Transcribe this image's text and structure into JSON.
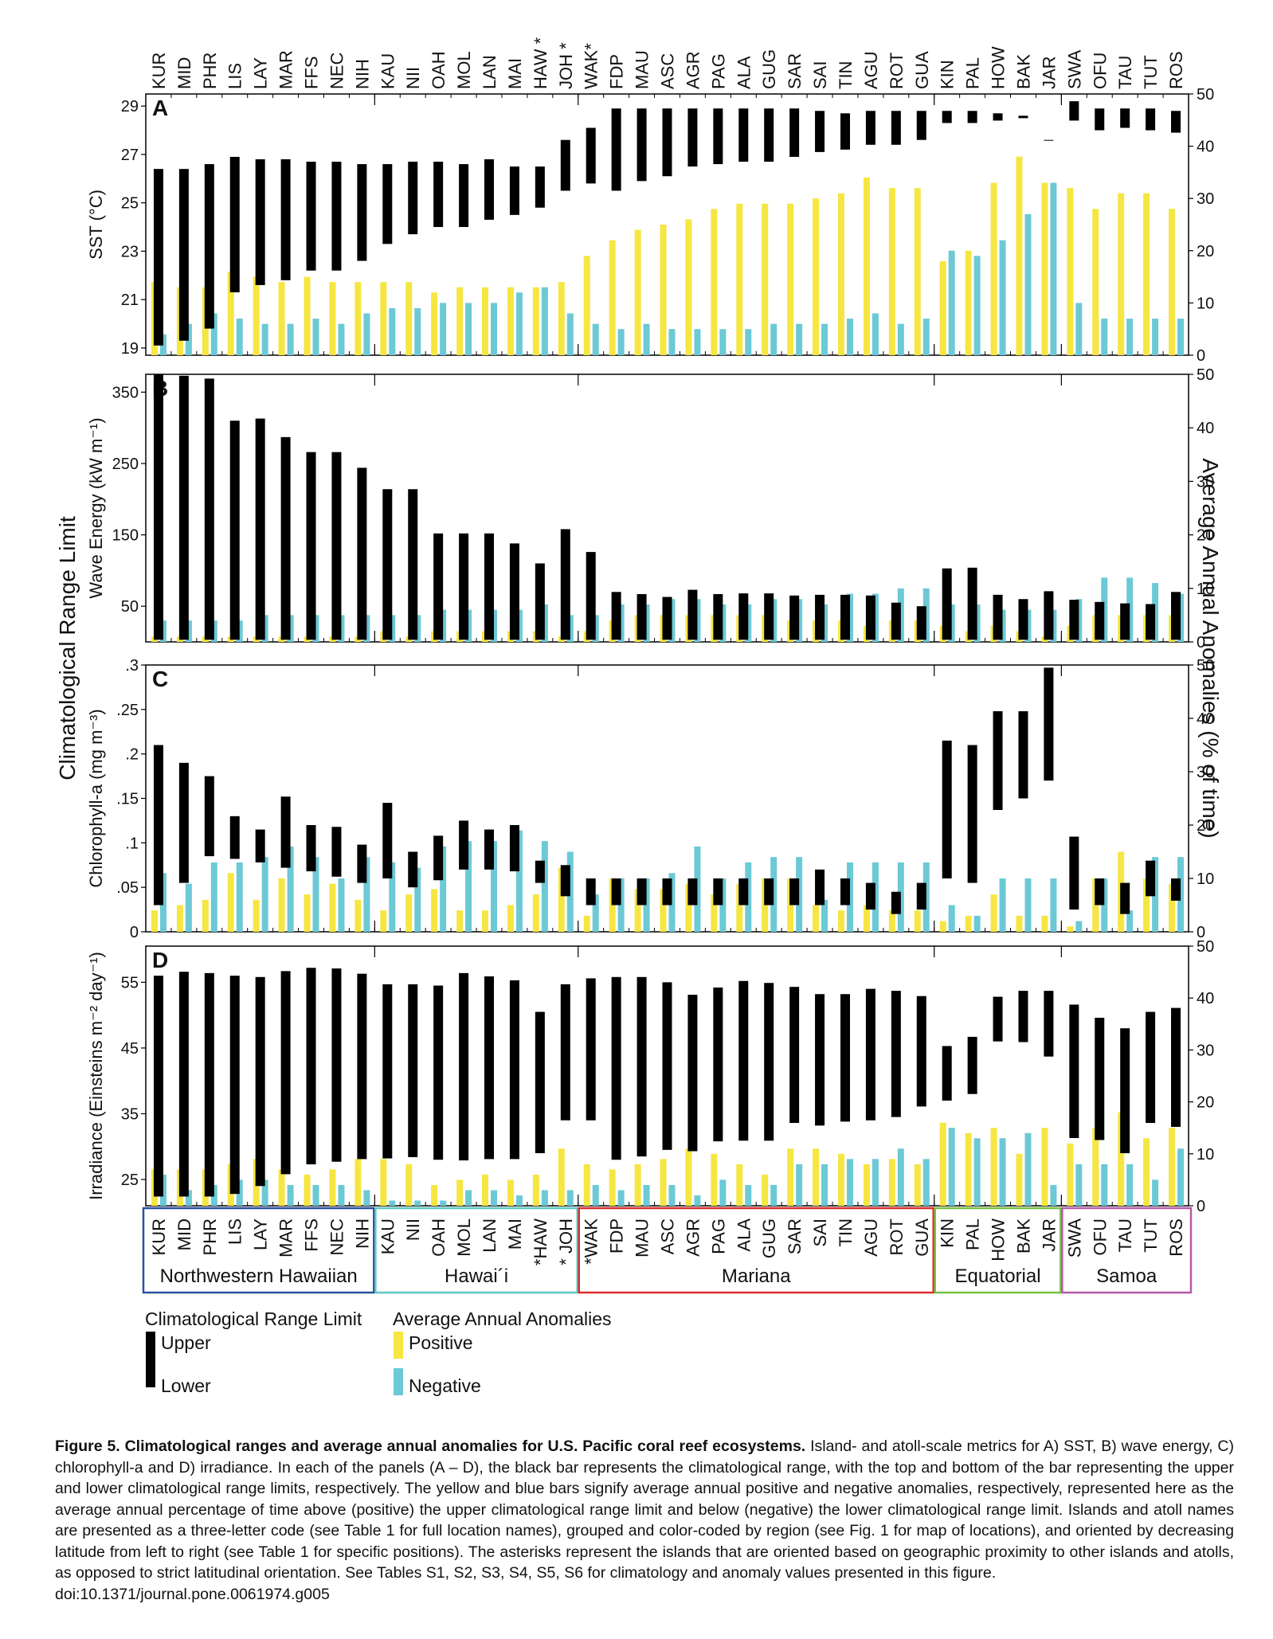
{
  "figure": {
    "caption_title": "Figure 5. Climatological ranges and average annual anomalies for U.S. Pacific coral reef ecosystems.",
    "caption_body": "Island- and atoll-scale metrics for A) SST, B) wave energy, C) chlorophyll-a and D) irradiance. In each of the panels (A – D), the black bar represents the climatological range, with the top and bottom of the bar representing the upper and lower climatological range limits, respectively. The yellow and blue bars signify average annual positive and negative anomalies, respectively, represented here as the average annual percentage of time above (positive) the upper climatological range limit and below (negative) the lower climatological range limit. Islands and atoll names are presented as a three-letter code (see Table 1 for full location names), grouped and color-coded by region (see Fig. 1 for map of locations), and oriented by decreasing latitude from left to right (see Table 1 for specific positions). The asterisks represent the islands that are oriented based on geographic proximity to other islands and atolls, as opposed to strict latitudinal orientation. See Tables S1, S2, S3, S4, S5, S6 for climatology and anomaly values presented in this figure.",
    "doi": "doi:10.1371/journal.pone.0061974.g005",
    "left_axis_title": "Climatological Range Limit",
    "right_axis_title": "Average Annual Anomalies (% of time)",
    "legend": {
      "range_title": "Climatological Range Limit",
      "upper": "Upper",
      "lower": "Lower",
      "anomaly_title": "Average Annual Anomalies",
      "positive": "Positive",
      "negative": "Negative"
    },
    "colors": {
      "range": "#000000",
      "positive": "#f5e642",
      "negative": "#6cc9d6"
    }
  },
  "chart_data": {
    "type": "bar",
    "categories": [
      "KUR",
      "MID",
      "PHR",
      "LIS",
      "LAY",
      "MAR",
      "FFS",
      "NEC",
      "NIH",
      "KAU",
      "NII",
      "OAH",
      "MOL",
      "LAN",
      "MAI",
      "HAW",
      "JOH",
      "WAK",
      "FDP",
      "MAU",
      "ASC",
      "AGR",
      "PAG",
      "ALA",
      "GUG",
      "SAR",
      "SAI",
      "TIN",
      "AGU",
      "ROT",
      "GUA",
      "KIN",
      "PAL",
      "HOW",
      "BAK",
      "JAR",
      "SWA",
      "OFU",
      "TAU",
      "TUT",
      "ROS"
    ],
    "top_labels": [
      "KUR",
      "MID",
      "PHR",
      "LIS",
      "LAY",
      "MAR",
      "FFS",
      "NEC",
      "NIH",
      "KAU",
      "NII",
      "OAH",
      "MOL",
      "LAN",
      "MAI",
      "HAW *",
      "JOH *",
      "WAK*",
      "FDP",
      "MAU",
      "ASC",
      "AGR",
      "PAG",
      "ALA",
      "GUG",
      "SAR",
      "SAI",
      "TIN",
      "AGU",
      "ROT",
      "GUA",
      "KIN",
      "PAL",
      "HOW",
      "BAK",
      "JAR",
      "SWA",
      "OFU",
      "TAU",
      "TUT",
      "ROS"
    ],
    "bottom_labels": [
      "KUR",
      "MID",
      "PHR",
      "LIS",
      "LAY",
      "MAR",
      "FFS",
      "NEC",
      "NIH",
      "KAU",
      "NII",
      "OAH",
      "MOL",
      "LAN",
      "MAI",
      "*HAW",
      "* JOH",
      "*WAK",
      "FDP",
      "MAU",
      "ASC",
      "AGR",
      "PAG",
      "ALA",
      "GUG",
      "SAR",
      "SAI",
      "TIN",
      "AGU",
      "ROT",
      "GUA",
      "KIN",
      "PAL",
      "HOW",
      "BAK",
      "JAR",
      "SWA",
      "OFU",
      "TAU",
      "TUT",
      "ROS"
    ],
    "regions": [
      {
        "name": "Northwestern Hawaiian",
        "start": 0,
        "end": 8,
        "color": "#2a4fa0"
      },
      {
        "name": "Hawai´i",
        "start": 9,
        "end": 16,
        "color": "#5ec8c0"
      },
      {
        "name": "Mariana",
        "start": 17,
        "end": 30,
        "color": "#d92b2b"
      },
      {
        "name": "Equatorial",
        "start": 31,
        "end": 35,
        "color": "#7ac043"
      },
      {
        "name": "Samoa",
        "start": 36,
        "end": 40,
        "color": "#b55ba8"
      }
    ],
    "right_ylim": [
      0,
      50
    ],
    "right_ticks": [
      0,
      10,
      20,
      30,
      40,
      50
    ],
    "panels": [
      {
        "letter": "A",
        "ylabel": "SST (°C)",
        "ylim": [
          18.7,
          29.5
        ],
        "yticks": [
          19,
          21,
          23,
          25,
          27,
          29
        ],
        "range_lower": [
          19.1,
          19.3,
          19.8,
          21.3,
          21.6,
          21.8,
          22.2,
          22.2,
          22.6,
          23.3,
          23.7,
          24.0,
          24.0,
          24.3,
          24.5,
          24.8,
          25.5,
          25.8,
          25.5,
          25.9,
          26.1,
          26.5,
          26.6,
          26.7,
          26.7,
          26.9,
          27.1,
          27.2,
          27.4,
          27.4,
          27.6,
          28.3,
          28.3,
          28.4,
          28.5,
          27.6,
          28.4,
          28.0,
          28.1,
          28.0,
          27.9
        ],
        "range_upper": [
          26.4,
          26.4,
          26.6,
          26.9,
          26.8,
          26.8,
          26.7,
          26.7,
          26.6,
          26.6,
          26.7,
          26.7,
          26.6,
          26.8,
          26.5,
          26.5,
          27.6,
          28.1,
          28.9,
          28.9,
          28.9,
          28.9,
          28.9,
          28.9,
          28.9,
          28.9,
          28.8,
          28.7,
          28.8,
          28.8,
          28.8,
          28.8,
          28.8,
          28.7,
          28.6,
          27.6,
          29.2,
          28.9,
          28.9,
          28.9,
          28.8
        ],
        "positive": [
          14,
          13,
          13,
          16,
          15,
          14,
          15,
          14,
          14,
          14,
          14,
          12,
          13,
          13,
          13,
          13,
          14,
          19,
          22,
          24,
          25,
          26,
          28,
          29,
          29,
          29,
          30,
          31,
          34,
          32,
          32,
          18,
          20,
          33,
          38,
          33,
          32,
          28,
          31,
          31,
          28
        ],
        "negative": [
          4,
          6,
          8,
          7,
          6,
          6,
          7,
          6,
          8,
          9,
          9,
          10,
          10,
          10,
          12,
          13,
          8,
          6,
          5,
          6,
          5,
          5,
          5,
          5,
          6,
          6,
          6,
          7,
          8,
          6,
          7,
          20,
          19,
          22,
          27,
          33,
          10,
          7,
          7,
          7,
          7
        ]
      },
      {
        "letter": "B",
        "ylabel": "Wave Energy (kW m⁻¹)",
        "ylim": [
          0,
          375
        ],
        "yticks": [
          50,
          150,
          250,
          350
        ],
        "range_lower": [
          3,
          3,
          3,
          3,
          3,
          3,
          3,
          3,
          3,
          3,
          3,
          3,
          3,
          3,
          3,
          3,
          3,
          3,
          3,
          3,
          3,
          3,
          3,
          3,
          3,
          3,
          3,
          3,
          3,
          3,
          3,
          3,
          3,
          3,
          3,
          3,
          3,
          3,
          3,
          3,
          3
        ],
        "range_upper": [
          375,
          373,
          369,
          310,
          313,
          287,
          266,
          266,
          244,
          214,
          214,
          152,
          152,
          152,
          138,
          110,
          158,
          126,
          70,
          67,
          63,
          73,
          67,
          68,
          68,
          65,
          66,
          66,
          65,
          55,
          50,
          103,
          104,
          66,
          60,
          71,
          59,
          56,
          54,
          53,
          70
        ],
        "positive": [
          1,
          1,
          1,
          1,
          1,
          1,
          1,
          1,
          1,
          2,
          1,
          2,
          2,
          2,
          2,
          2,
          1,
          2,
          4,
          5,
          5,
          5,
          5,
          5,
          5,
          4,
          4,
          4,
          3,
          4,
          4,
          3,
          2,
          3,
          2,
          1,
          3,
          5,
          5,
          5,
          5
        ],
        "negative": [
          4,
          4,
          4,
          4,
          5,
          5,
          5,
          5,
          5,
          5,
          5,
          6,
          6,
          6,
          6,
          7,
          5,
          5,
          7,
          7,
          8,
          8,
          7,
          7,
          8,
          8,
          7,
          9,
          9,
          10,
          10,
          7,
          7,
          6,
          6,
          6,
          8,
          12,
          12,
          11,
          9
        ]
      },
      {
        "letter": "C",
        "ylabel": "Chlorophyll-a (mg m⁻³)",
        "ylim": [
          0,
          0.3
        ],
        "yticks": [
          0,
          0.05,
          0.1,
          0.15,
          0.2,
          0.25,
          0.3
        ],
        "range_lower": [
          0.03,
          0.055,
          0.085,
          0.082,
          0.078,
          0.072,
          0.068,
          0.062,
          0.055,
          0.06,
          0.05,
          0.058,
          0.07,
          0.07,
          0.068,
          0.055,
          0.04,
          0.03,
          0.03,
          0.03,
          0.03,
          0.03,
          0.03,
          0.03,
          0.03,
          0.03,
          0.03,
          0.03,
          0.025,
          0.02,
          0.025,
          0.06,
          0.055,
          0.137,
          0.15,
          0.17,
          0.025,
          0.03,
          0.02,
          0.04,
          0.035
        ],
        "range_upper": [
          0.21,
          0.19,
          0.175,
          0.13,
          0.115,
          0.152,
          0.12,
          0.118,
          0.098,
          0.145,
          0.09,
          0.108,
          0.125,
          0.115,
          0.12,
          0.08,
          0.075,
          0.06,
          0.06,
          0.06,
          0.06,
          0.06,
          0.06,
          0.06,
          0.06,
          0.06,
          0.07,
          0.06,
          0.055,
          0.045,
          0.055,
          0.215,
          0.21,
          0.248,
          0.248,
          0.297,
          0.107,
          0.06,
          0.055,
          0.08,
          0.06
        ],
        "positive": [
          4,
          5,
          6,
          11,
          6,
          10,
          7,
          9,
          6,
          4,
          7,
          8,
          4,
          4,
          5,
          7,
          12,
          3,
          10,
          8,
          8,
          9,
          7,
          9,
          10,
          10,
          5,
          4,
          5,
          4,
          4,
          2,
          3,
          7,
          3,
          3,
          1,
          10,
          15,
          10,
          9
        ],
        "negative": [
          11,
          9,
          13,
          13,
          14,
          16,
          14,
          10,
          14,
          13,
          12,
          16,
          17,
          17,
          19,
          17,
          15,
          7,
          10,
          10,
          11,
          16,
          10,
          13,
          14,
          14,
          6,
          13,
          13,
          13,
          13,
          5,
          3,
          10,
          10,
          10,
          2,
          10,
          4,
          14,
          14
        ]
      },
      {
        "letter": "D",
        "ylabel": "Irradiance (Einsteins m⁻² day⁻¹)",
        "ylim": [
          21,
          60.5
        ],
        "yticks": [
          25,
          35,
          45,
          55
        ],
        "range_lower": [
          22.4,
          22.4,
          22.4,
          22.8,
          24.0,
          25.8,
          27.3,
          27.7,
          28.1,
          28.2,
          28.4,
          28.0,
          27.9,
          28.1,
          28.1,
          29.0,
          34.0,
          34.0,
          28.0,
          28.5,
          29.5,
          29.3,
          30.8,
          30.9,
          30.9,
          33.6,
          33.2,
          33.8,
          34.0,
          34.5,
          36.1,
          37.0,
          38.0,
          46.0,
          45.9,
          43.7,
          31.3,
          31.0,
          29.0,
          33.6,
          33.0
        ],
        "range_upper": [
          56.0,
          56.6,
          56.4,
          56.0,
          55.8,
          56.7,
          57.2,
          57.1,
          56.3,
          54.7,
          54.7,
          54.5,
          56.4,
          55.9,
          55.3,
          50.5,
          54.7,
          55.6,
          55.8,
          55.8,
          55.0,
          53.1,
          54.2,
          55.2,
          54.9,
          54.3,
          53.2,
          53.2,
          54.0,
          53.7,
          52.9,
          45.3,
          46.7,
          52.8,
          53.7,
          53.7,
          51.6,
          49.6,
          48.0,
          50.5,
          51.1
        ],
        "positive": [
          7,
          7,
          7,
          8,
          9,
          7,
          6,
          7,
          9,
          9,
          8,
          4,
          5,
          6,
          5,
          6,
          11,
          8,
          7,
          8,
          9,
          11,
          10,
          8,
          6,
          11,
          11,
          10,
          8,
          9,
          8,
          16,
          14,
          15,
          10,
          15,
          12,
          15,
          18,
          13,
          15
        ],
        "negative": [
          6,
          3,
          4,
          5,
          5,
          4,
          4,
          4,
          3,
          1,
          1,
          1,
          3,
          3,
          2,
          3,
          3,
          4,
          3,
          4,
          4,
          2,
          5,
          4,
          4,
          8,
          8,
          9,
          9,
          11,
          9,
          15,
          13,
          13,
          14,
          4,
          8,
          8,
          8,
          5,
          11
        ]
      }
    ]
  }
}
